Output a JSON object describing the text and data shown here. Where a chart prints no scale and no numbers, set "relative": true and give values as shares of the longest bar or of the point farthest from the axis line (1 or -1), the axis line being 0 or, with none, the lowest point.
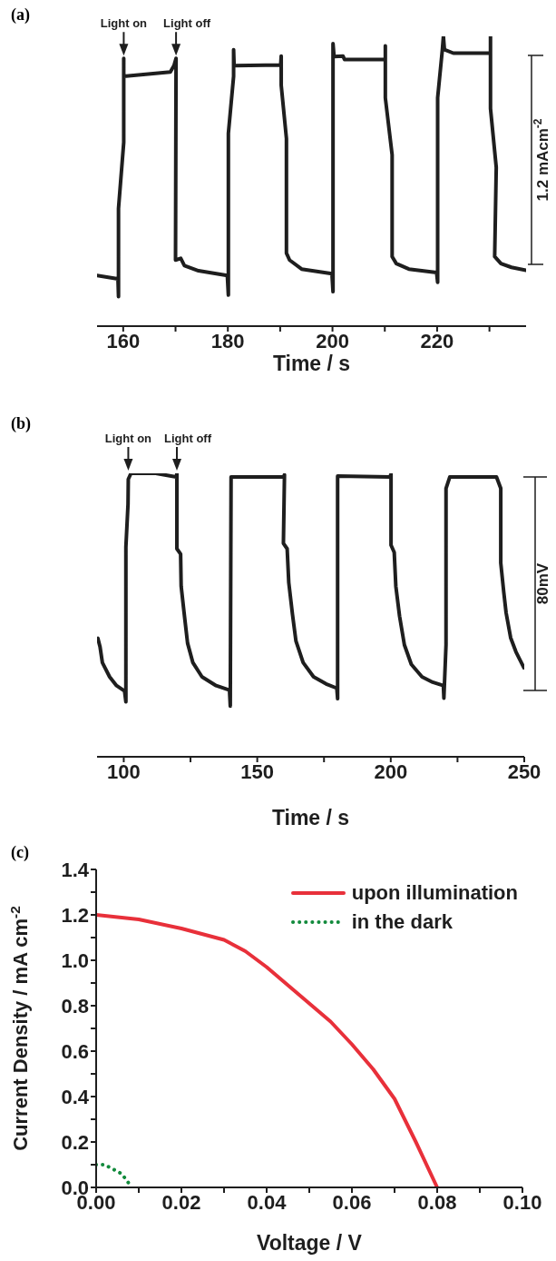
{
  "chart_data": [
    {
      "type": "line",
      "title": "(a)",
      "xlabel": "Time / s",
      "relative": true,
      "tick_labels": "x",
      "xlim": [
        155,
        237
      ],
      "xticks": [
        160,
        {
          "value": 170,
          "label": null
        },
        180,
        {
          "value": 190,
          "label": null
        },
        200,
        {
          "value": 210,
          "label": null
        },
        220,
        {
          "value": 230,
          "label": null
        }
      ],
      "annotations": [
        {
          "text": "Light on",
          "x": 160.1,
          "y": 0.924
        },
        {
          "text": "Light off",
          "x": 170.1,
          "y": 0.924
        },
        "1.2 mAcm$^{-2}$"
      ],
      "series": [
        {
          "color": "#1e1e1e",
          "x": [
            155.0,
            159.0,
            159.1,
            159.1,
            160.1,
            160.1,
            160.1,
            169.0,
            169.7,
            170.1,
            170.0,
            171.0,
            171.7,
            174.4,
            179.9,
            180.1,
            180.1,
            181.1,
            181.1,
            181.2,
            190.1,
            190.2,
            190.2,
            191.2,
            191.2,
            191.8,
            194.1,
            199.9,
            200.1,
            200.1,
            200.3,
            202.0,
            202.3,
            210.1,
            210.1,
            210.1,
            211.4,
            211.4,
            212.2,
            214.6,
            219.9,
            220.1,
            220.1,
            221.0,
            221.2,
            221.4,
            223.1,
            230.2,
            230.2,
            230.2,
            231.3,
            231.0,
            232.2,
            234.2,
            237.0
          ],
          "values": [
            0.175,
            0.163,
            0.102,
            0.406,
            0.634,
            0.924,
            0.862,
            0.877,
            0.899,
            0.924,
            0.228,
            0.234,
            0.209,
            0.191,
            0.175,
            0.107,
            0.665,
            0.862,
            0.954,
            0.899,
            0.901,
            0.932,
            0.831,
            0.647,
            0.252,
            0.228,
            0.197,
            0.181,
            0.119,
            0.975,
            0.93,
            0.932,
            0.92,
            0.92,
            0.967,
            0.788,
            0.591,
            0.24,
            0.216,
            0.197,
            0.185,
            0.151,
            0.788,
            0.954,
            1.0,
            0.954,
            0.942,
            0.942,
            1.0,
            0.751,
            0.548,
            0.24,
            0.216,
            0.203,
            0.193
          ]
        }
      ]
    },
    {
      "type": "line",
      "title": "(b)",
      "xlabel": "Time / s",
      "relative": true,
      "tick_labels": "x",
      "xlim": [
        90,
        250
      ],
      "xticks": [
        100,
        {
          "value": 125,
          "label": null
        },
        150,
        {
          "value": 175,
          "label": null
        },
        200,
        {
          "value": 225,
          "label": null
        },
        250
      ],
      "annotations": [
        {
          "text": "Light on",
          "x": 101.7,
          "y": 1.0
        },
        {
          "text": "Light off",
          "x": 119.9,
          "y": 1.0
        },
        "80mV"
      ],
      "series": [
        {
          "color": "#1e1e1e",
          "x": [
            90.3,
            91.1,
            92.0,
            94.7,
            97.3,
            100.3,
            100.8,
            100.8,
            101.6,
            101.7,
            102.7,
            112.0,
            119.7,
            119.9,
            119.9,
            121.3,
            121.5,
            122.6,
            123.9,
            125.9,
            129.3,
            134.6,
            139.6,
            139.9,
            140.2,
            159.8,
            160.2,
            159.8,
            161.2,
            161.8,
            163.2,
            164.5,
            167.2,
            171.1,
            175.8,
            179.8,
            180.1,
            180.1,
            199.7,
            200.1,
            200.1,
            201.3,
            201.9,
            203.3,
            205.1,
            207.7,
            211.7,
            215.7,
            219.7,
            219.9,
            220.7,
            220.7,
            222.1,
            239.6,
            241.2,
            241.2,
            242.3,
            243.2,
            244.9,
            246.9,
            249.9
          ],
          "values": [
            0.418,
            0.389,
            0.332,
            0.282,
            0.251,
            0.232,
            0.194,
            0.74,
            0.891,
            0.979,
            1.0,
            1.0,
            0.987,
            1.0,
            0.734,
            0.715,
            0.602,
            0.508,
            0.401,
            0.332,
            0.282,
            0.251,
            0.235,
            0.179,
            0.987,
            0.987,
            0.995,
            0.753,
            0.734,
            0.615,
            0.502,
            0.408,
            0.332,
            0.282,
            0.257,
            0.242,
            0.205,
            0.99,
            0.987,
            0.997,
            0.747,
            0.721,
            0.602,
            0.496,
            0.395,
            0.326,
            0.282,
            0.263,
            0.251,
            0.207,
            0.395,
            0.947,
            0.987,
            0.987,
            0.947,
            0.684,
            0.583,
            0.508,
            0.42,
            0.37,
            0.314
          ]
        }
      ]
    },
    {
      "type": "line",
      "title": "(c)",
      "xlabel": "Voltage / V",
      "ylabel": "Current Density / mA cm$^{-2}$",
      "legend": "top right",
      "marker": "none",
      "xlim": [
        0,
        0.1
      ],
      "xticks": [
        {
          "value": 0,
          "label": "0.00"
        },
        {
          "value": 0.01,
          "label": null
        },
        {
          "value": 0.02,
          "label": "0.02"
        },
        {
          "value": 0.03,
          "label": null
        },
        {
          "value": 0.04,
          "label": "0.04"
        },
        {
          "value": 0.05,
          "label": null
        },
        {
          "value": 0.06,
          "label": "0.06"
        },
        {
          "value": 0.07,
          "label": null
        },
        {
          "value": 0.08,
          "label": "0.08"
        },
        {
          "value": 0.09,
          "label": null
        },
        {
          "value": 0.1,
          "label": "0.10"
        }
      ],
      "ylim": [
        0,
        1.4
      ],
      "yticks": [
        {
          "value": 0,
          "label": "0.0"
        },
        {
          "value": 0.1,
          "label": null
        },
        {
          "value": 0.2,
          "label": "0.2"
        },
        {
          "value": 0.3,
          "label": null
        },
        {
          "value": 0.4,
          "label": "0.4"
        },
        {
          "value": 0.5,
          "label": null
        },
        {
          "value": 0.6,
          "label": "0.6"
        },
        {
          "value": 0.7,
          "label": null
        },
        {
          "value": 0.8,
          "label": "0.8"
        },
        {
          "value": 0.9,
          "label": null
        },
        {
          "value": 1.0,
          "label": "1.0"
        },
        {
          "value": 1.1,
          "label": null
        },
        {
          "value": 1.2,
          "label": "1.2"
        },
        {
          "value": 1.3,
          "label": null
        },
        {
          "value": 1.4,
          "label": "1.4"
        }
      ],
      "series": [
        {
          "name": "upon illumination",
          "color": "#e8303a",
          "line_style": "solid",
          "x": [
            0,
            0.01,
            0.02,
            0.03,
            0.035,
            0.04,
            0.045,
            0.05,
            0.055,
            0.06,
            0.065,
            0.07,
            0.075,
            0.08
          ],
          "values": [
            1.2,
            1.18,
            1.14,
            1.09,
            1.04,
            0.97,
            0.89,
            0.81,
            0.73,
            0.63,
            0.52,
            0.39,
            0.2,
            0.0
          ]
        },
        {
          "name": "in the dark",
          "color": "#128a3c",
          "line_style": "dotted",
          "x": [
            0,
            0.002,
            0.004,
            0.006,
            0.008
          ],
          "values": [
            0.1,
            0.1,
            0.08,
            0.06,
            0.01
          ]
        }
      ]
    }
  ]
}
